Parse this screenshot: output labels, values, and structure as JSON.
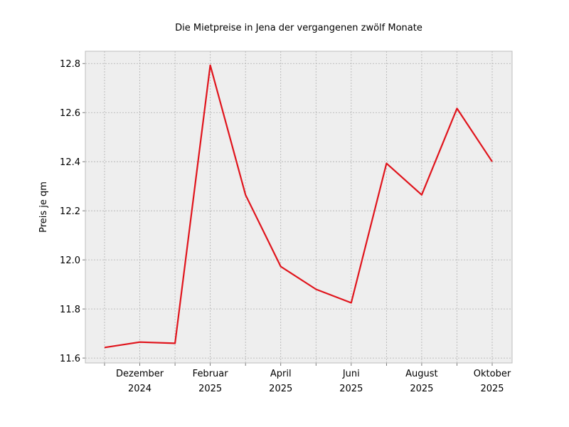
{
  "chart_data": {
    "type": "line",
    "title": "Die Mietpreise in Jena der vergangenen zwölf Monate",
    "xlabel": "",
    "ylabel": "Preis je qm",
    "x": [
      "2024-11",
      "2024-12",
      "2025-01",
      "2025-02",
      "2025-03",
      "2025-04",
      "2025-05",
      "2025-06",
      "2025-07",
      "2025-08",
      "2025-09",
      "2025-10"
    ],
    "series": [
      {
        "values": [
          11.643,
          11.665,
          11.66,
          12.793,
          12.265,
          11.973,
          11.88,
          11.825,
          12.393,
          12.265,
          12.617,
          12.4
        ]
      }
    ],
    "ylim": [
      11.58,
      12.85
    ],
    "yticks": [
      11.6,
      11.8,
      12.0,
      12.2,
      12.4,
      12.6,
      12.8
    ],
    "ytick_labels": [
      "11.6",
      "11.8",
      "12.0",
      "12.2",
      "12.4",
      "12.6",
      "12.8"
    ],
    "xtick_labels": [
      {
        "month": "Dezember",
        "year": "2024"
      },
      {
        "month": "Februar",
        "year": "2025"
      },
      {
        "month": "April",
        "year": "2025"
      },
      {
        "month": "Juni",
        "year": "2025"
      },
      {
        "month": "August",
        "year": "2025"
      },
      {
        "month": "Oktober",
        "year": "2025"
      }
    ],
    "grid": true,
    "colors": {
      "line": "#e0141c",
      "plot_background": "#eeeeee",
      "grid": "#b0b0b0"
    }
  }
}
